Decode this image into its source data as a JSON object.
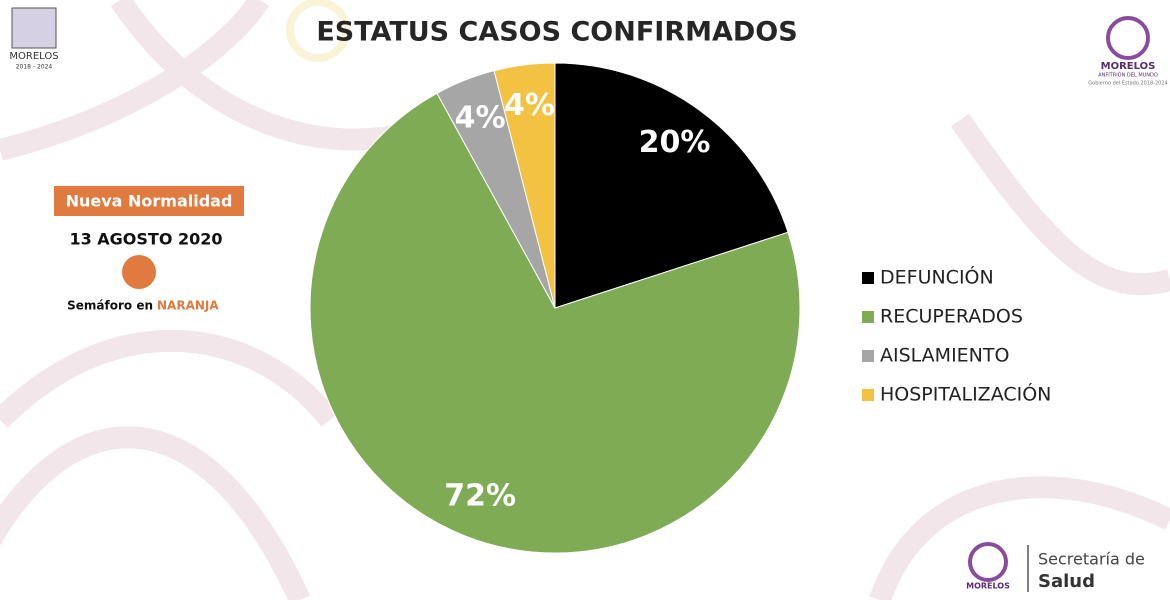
{
  "chart_data": {
    "type": "pie",
    "title": "ESTATUS CASOS CONFIRMADOS",
    "categories": [
      "DEFUNCIÓN",
      "RECUPERADOS",
      "AISLAMIENTO",
      "HOSPITALIZACIÓN"
    ],
    "values": [
      20,
      72,
      4,
      4
    ],
    "value_labels": [
      "20%",
      "72%",
      "4%",
      "4%"
    ],
    "colors": [
      "#000000",
      "#7fab55",
      "#a6a6a6",
      "#f4c242"
    ],
    "legend": "right"
  },
  "sidebar": {
    "badge": "Nueva Normalidad",
    "date": "13 AGOSTO 2020",
    "semaforo_prefix": "Semáforo en",
    "semaforo_value": "NARANJA"
  },
  "logos": {
    "left_name": "MORELOS",
    "left_years": "2018 - 2024",
    "right_name": "MORELOS",
    "right_tagline": "ANFITRIÓN DEL MUNDO",
    "right_sub": "Gobierno del Estado 2018-2024",
    "footer_line1": "Secretaría de",
    "footer_line2": "Salud"
  }
}
